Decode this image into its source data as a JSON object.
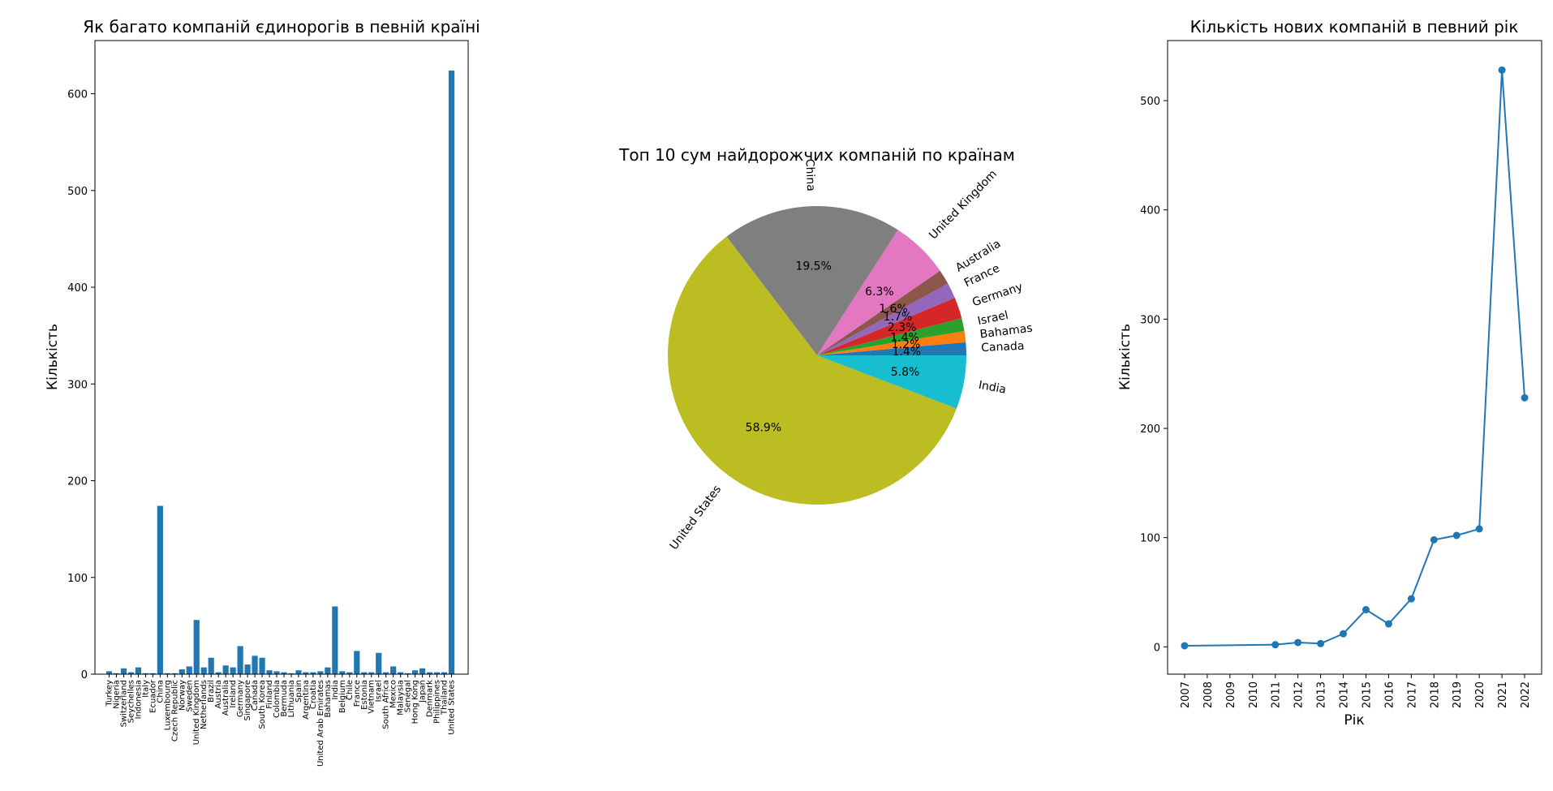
{
  "chart_data": [
    {
      "type": "bar",
      "title": "Як багато компаній єдинорогів в певній країні",
      "xlabel": "",
      "ylabel": "Кількість",
      "ylim": [
        0,
        655
      ],
      "yticks": [
        0,
        100,
        200,
        300,
        400,
        500,
        600
      ],
      "color": "#1f77b4",
      "categories": [
        "Turkey",
        "Nigeria",
        "Switzerland",
        "Seychelles",
        "Indonesia",
        "Italy",
        "Ecuador",
        "China",
        "Luxembourg",
        "Czech Republic",
        "Norway",
        "Sweden",
        "United Kingdom",
        "Netherlands",
        "Brazil",
        "Austria",
        "Australia",
        "Ireland",
        "Germany",
        "Singapore",
        "Canada",
        "South Korea",
        "Finland",
        "Colombia",
        "Bermuda",
        "Lithuania",
        "Spain",
        "Argentina",
        "Croatia",
        "United Arab Emirates",
        "Bahamas",
        "India",
        "Belgium",
        "Chile",
        "France",
        "Estonia",
        "Vietnam",
        "Israel",
        "South Africa",
        "Mexico",
        "Malaysia",
        "Senegal",
        "Hong Kong",
        "Japan",
        "Denmark",
        "Philippines",
        "Thailand",
        "United States"
      ],
      "values": [
        3,
        1,
        6,
        2,
        7,
        1,
        1,
        174,
        1,
        1,
        5,
        8,
        56,
        7,
        17,
        2,
        9,
        7,
        29,
        10,
        19,
        17,
        4,
        3,
        2,
        1,
        4,
        2,
        2,
        3,
        7,
        70,
        3,
        2,
        24,
        2,
        2,
        22,
        2,
        8,
        2,
        1,
        4,
        6,
        2,
        2,
        2,
        624
      ]
    },
    {
      "type": "pie",
      "title": "Топ 10 сум найдорожчих компаній по країнам",
      "labels": [
        "Canada",
        "Bahamas",
        "Israel",
        "Germany",
        "France",
        "Australia",
        "United Kingdom",
        "China",
        "United States",
        "India"
      ],
      "percentages": [
        1.4,
        1.2,
        1.4,
        2.3,
        1.7,
        1.6,
        6.3,
        19.5,
        58.9,
        5.8
      ],
      "colors": [
        "#1f77b4",
        "#ff7f0e",
        "#2ca02c",
        "#d62728",
        "#9467bd",
        "#8c564b",
        "#e377c2",
        "#7f7f7f",
        "#bcbd22",
        "#17becf"
      ]
    },
    {
      "type": "line",
      "title": "Кількість нових компаній в певний рік",
      "xlabel": "Рік",
      "ylabel": "Кількість",
      "x": [
        2007,
        2011,
        2012,
        2013,
        2014,
        2015,
        2016,
        2017,
        2018,
        2019,
        2020,
        2021,
        2022
      ],
      "y": [
        1,
        2,
        4,
        3,
        12,
        34,
        21,
        44,
        98,
        102,
        108,
        528,
        228
      ],
      "xticks": [
        2007,
        2008,
        2009,
        2010,
        2011,
        2012,
        2013,
        2014,
        2015,
        2016,
        2017,
        2018,
        2019,
        2020,
        2021,
        2022
      ],
      "yticks": [
        0,
        100,
        200,
        300,
        400,
        500
      ],
      "ylim": [
        -25,
        555
      ],
      "xlim": [
        2006.25,
        2022.75
      ],
      "color": "#1f77b4"
    }
  ]
}
